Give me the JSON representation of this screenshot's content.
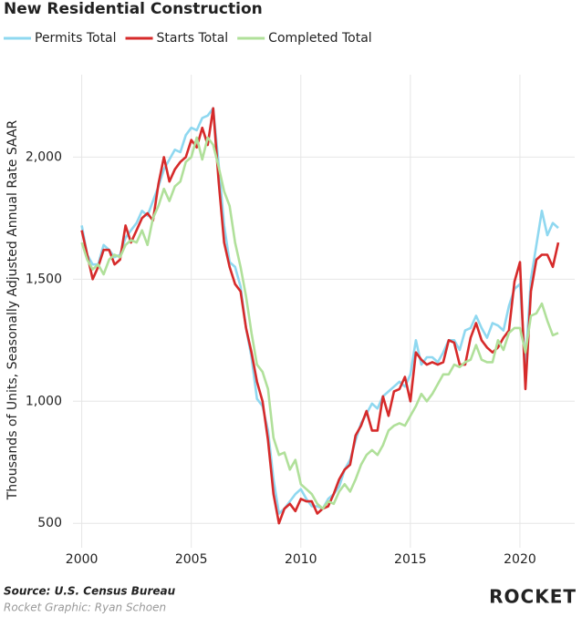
{
  "chart_data": {
    "type": "line",
    "title": "New Residential Construction",
    "ylabel": "Thousands of Units, Seasonally Adjusted Annual Rate SAAR",
    "source": "Source: U.S. Census Bureau",
    "credit": "Rocket Graphic: Ryan Schoen",
    "brand": "ROCKET",
    "grid": true,
    "legend": "top",
    "xlim": [
      1999.6,
      2022.5
    ],
    "ylim": [
      400,
      2300
    ],
    "xticks": [
      2000,
      2005,
      2010,
      2015,
      2020
    ],
    "yticks": [
      500,
      {
        "value": 1000,
        "label": "1,000"
      },
      {
        "value": 1500,
        "label": "1,500"
      },
      {
        "value": 2000,
        "label": "2,000"
      }
    ],
    "x": [
      2000,
      2000.25,
      2000.5,
      2000.75,
      2001,
      2001.25,
      2001.5,
      2001.75,
      2002,
      2002.25,
      2002.5,
      2002.75,
      2003,
      2003.25,
      2003.5,
      2003.75,
      2004,
      2004.25,
      2004.5,
      2004.75,
      2005,
      2005.25,
      2005.5,
      2005.75,
      2006,
      2006.25,
      2006.5,
      2006.75,
      2007,
      2007.25,
      2007.5,
      2007.75,
      2008,
      2008.25,
      2008.5,
      2008.75,
      2009,
      2009.25,
      2009.5,
      2009.75,
      2010,
      2010.25,
      2010.5,
      2010.75,
      2011,
      2011.25,
      2011.5,
      2011.75,
      2012,
      2012.25,
      2012.5,
      2012.75,
      2013,
      2013.25,
      2013.5,
      2013.75,
      2014,
      2014.25,
      2014.5,
      2014.75,
      2015,
      2015.25,
      2015.5,
      2015.75,
      2016,
      2016.25,
      2016.5,
      2016.75,
      2017,
      2017.25,
      2017.5,
      2017.75,
      2018,
      2018.25,
      2018.5,
      2018.75,
      2019,
      2019.25,
      2019.5,
      2019.75,
      2020,
      2020.25,
      2020.5,
      2020.75,
      2021,
      2021.25,
      2021.5,
      2021.75
    ],
    "series": [
      {
        "name": "Permits Total",
        "color": "#8fd8f0",
        "values": [
          1720,
          1600,
          1560,
          1560,
          1640,
          1620,
          1590,
          1600,
          1670,
          1700,
          1730,
          1780,
          1760,
          1820,
          1880,
          1950,
          1990,
          2030,
          2020,
          2090,
          2120,
          2110,
          2160,
          2170,
          2200,
          1970,
          1720,
          1570,
          1550,
          1470,
          1300,
          1180,
          1010,
          980,
          880,
          680,
          540,
          560,
          590,
          620,
          640,
          600,
          570,
          570,
          560,
          600,
          620,
          650,
          720,
          760,
          840,
          910,
          950,
          990,
          970,
          1020,
          1040,
          1060,
          1080,
          1060,
          1110,
          1250,
          1150,
          1180,
          1180,
          1160,
          1200,
          1250,
          1250,
          1210,
          1290,
          1300,
          1350,
          1300,
          1260,
          1320,
          1310,
          1290,
          1390,
          1460,
          1480,
          1150,
          1500,
          1640,
          1780,
          1680,
          1730,
          1710
        ]
      },
      {
        "name": "Starts Total",
        "color": "#d62a2a",
        "values": [
          1700,
          1600,
          1500,
          1550,
          1620,
          1620,
          1560,
          1580,
          1720,
          1650,
          1700,
          1750,
          1770,
          1740,
          1890,
          2000,
          1900,
          1950,
          1980,
          2000,
          2070,
          2040,
          2120,
          2050,
          2200,
          1900,
          1650,
          1550,
          1480,
          1450,
          1300,
          1200,
          1080,
          1000,
          840,
          620,
          500,
          560,
          580,
          550,
          600,
          590,
          590,
          540,
          560,
          570,
          620,
          680,
          720,
          740,
          860,
          900,
          960,
          880,
          880,
          1020,
          940,
          1040,
          1050,
          1100,
          1000,
          1200,
          1170,
          1150,
          1160,
          1150,
          1160,
          1250,
          1240,
          1150,
          1150,
          1260,
          1320,
          1250,
          1220,
          1200,
          1220,
          1260,
          1290,
          1490,
          1570,
          1050,
          1450,
          1580,
          1600,
          1600,
          1550,
          1650
        ]
      },
      {
        "name": "Completed Total",
        "color": "#b0e09a",
        "values": [
          1650,
          1580,
          1540,
          1560,
          1520,
          1580,
          1600,
          1590,
          1640,
          1660,
          1650,
          1700,
          1640,
          1750,
          1800,
          1870,
          1820,
          1880,
          1900,
          1980,
          2000,
          2080,
          1990,
          2080,
          2050,
          1960,
          1860,
          1800,
          1650,
          1550,
          1430,
          1280,
          1150,
          1120,
          1050,
          850,
          780,
          790,
          720,
          760,
          660,
          640,
          620,
          580,
          560,
          590,
          580,
          630,
          660,
          630,
          680,
          740,
          780,
          800,
          780,
          820,
          880,
          900,
          910,
          900,
          940,
          980,
          1030,
          1000,
          1030,
          1070,
          1110,
          1110,
          1150,
          1140,
          1160,
          1170,
          1230,
          1170,
          1160,
          1160,
          1250,
          1210,
          1280,
          1300,
          1300,
          1200,
          1350,
          1360,
          1400,
          1330,
          1270,
          1280
        ]
      }
    ]
  }
}
